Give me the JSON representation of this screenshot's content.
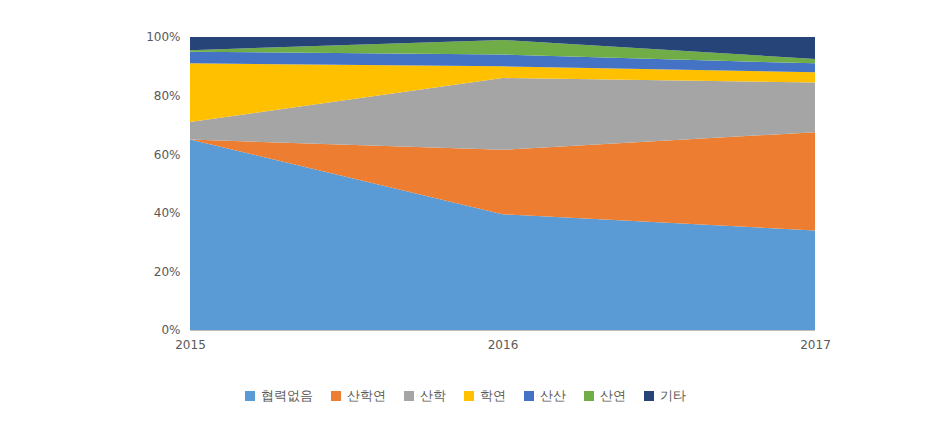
{
  "chart_data": {
    "type": "area",
    "stacked": true,
    "legend": "bottom",
    "grid": false,
    "x": [
      2015,
      2016,
      2017
    ],
    "xlim": [
      2015,
      2017
    ],
    "xticks": [
      2015,
      2016,
      2017
    ],
    "ylim": [
      0,
      100
    ],
    "yticks": [
      {
        "value": 0,
        "label": "0%"
      },
      {
        "value": 20,
        "label": "20%"
      },
      {
        "value": 40,
        "label": "40%"
      },
      {
        "value": 60,
        "label": "60%"
      },
      {
        "value": 80,
        "label": "80%"
      },
      {
        "value": 100,
        "label": "100%"
      }
    ],
    "series": [
      {
        "name": "협력없음",
        "color": "#5b9bd5",
        "values": [
          65,
          39.5,
          34
        ]
      },
      {
        "name": "산학연",
        "color": "#ed7d31",
        "values": [
          0,
          22,
          33.5
        ]
      },
      {
        "name": "산학",
        "color": "#a5a5a5",
        "values": [
          6,
          24.5,
          17
        ]
      },
      {
        "name": "학연",
        "color": "#ffc000",
        "values": [
          20,
          4,
          3.5
        ]
      },
      {
        "name": "산산",
        "color": "#4472c4",
        "values": [
          4,
          4,
          3
        ]
      },
      {
        "name": "산연",
        "color": "#70ad47",
        "values": [
          0.5,
          5,
          1.5
        ]
      },
      {
        "name": "기타",
        "color": "#264478",
        "values": [
          4.5,
          1,
          7.5
        ]
      }
    ]
  }
}
